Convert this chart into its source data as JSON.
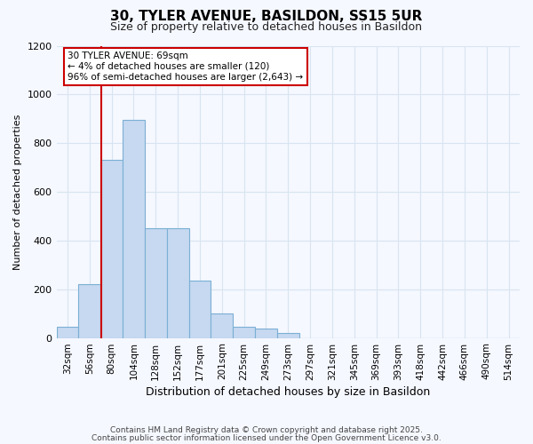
{
  "title": "30, TYLER AVENUE, BASILDON, SS15 5UR",
  "subtitle": "Size of property relative to detached houses in Basildon",
  "xlabel": "Distribution of detached houses by size in Basildon",
  "ylabel": "Number of detached properties",
  "footnote1": "Contains HM Land Registry data © Crown copyright and database right 2025.",
  "footnote2": "Contains public sector information licensed under the Open Government Licence v3.0.",
  "categories": [
    "32sqm",
    "56sqm",
    "80sqm",
    "104sqm",
    "128sqm",
    "152sqm",
    "177sqm",
    "201sqm",
    "225sqm",
    "249sqm",
    "273sqm",
    "297sqm",
    "321sqm",
    "345sqm",
    "369sqm",
    "393sqm",
    "418sqm",
    "442sqm",
    "466sqm",
    "490sqm",
    "514sqm"
  ],
  "values": [
    45,
    220,
    730,
    895,
    450,
    450,
    235,
    100,
    45,
    38,
    20,
    0,
    0,
    0,
    0,
    0,
    0,
    0,
    0,
    0,
    0
  ],
  "bar_color": "#c6d9f0",
  "bar_edge_color": "#7bafd4",
  "background_color": "#f5f8ff",
  "grid_color": "#d8e4f0",
  "annotation_text": "30 TYLER AVENUE: 69sqm\n← 4% of detached houses are smaller (120)\n96% of semi-detached houses are larger (2,643) →",
  "annotation_box_color": "#cc0000",
  "property_line_bar_index": 1.55,
  "ylim": [
    0,
    1200
  ],
  "yticks": [
    0,
    200,
    400,
    600,
    800,
    1000,
    1200
  ]
}
